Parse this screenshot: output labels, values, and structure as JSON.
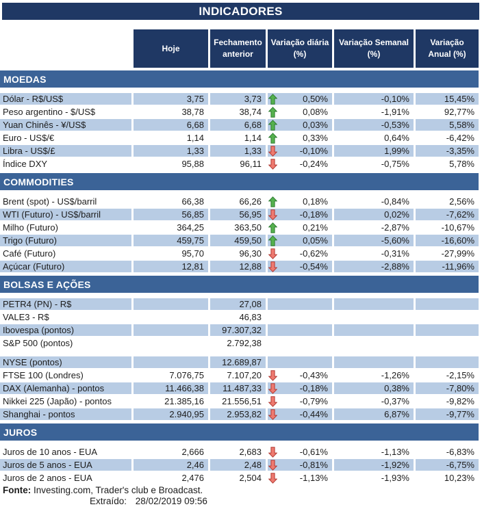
{
  "title": "INDICADORES",
  "columns": [
    "Hoje",
    "Fechamento anterior",
    "Variação diária (%)",
    "Variação Semanal (%)",
    "Variação Anual (%)"
  ],
  "sections": [
    {
      "name": "MOEDAS",
      "rows": [
        {
          "label": "Dólar - R$/US$",
          "hoje": "3,75",
          "prev": "3,73",
          "arrow": "up",
          "daily": "0,50%",
          "weekly": "-0,10%",
          "annual": "15,45%",
          "striped": true,
          "gap_before": false
        },
        {
          "label": "Peso argentino - $/US$",
          "hoje": "38,78",
          "prev": "38,74",
          "arrow": "up",
          "daily": "0,08%",
          "weekly": "-1,91%",
          "annual": "92,77%",
          "striped": false,
          "gap_before": false
        },
        {
          "label": "Yuan Chinês - ¥/US$",
          "hoje": "6,68",
          "prev": "6,68",
          "arrow": "up",
          "daily": "0,03%",
          "weekly": "-0,53%",
          "annual": "5,58%",
          "striped": true,
          "gap_before": false
        },
        {
          "label": "Euro - US$/€",
          "hoje": "1,14",
          "prev": "1,14",
          "arrow": "up",
          "daily": "0,33%",
          "weekly": "0,64%",
          "annual": "-6,42%",
          "striped": false,
          "gap_before": false
        },
        {
          "label": "Libra - US$/£",
          "hoje": "1,33",
          "prev": "1,33",
          "arrow": "down",
          "daily": "-0,10%",
          "weekly": "1,99%",
          "annual": "-3,35%",
          "striped": true,
          "gap_before": false
        },
        {
          "label": "Índice DXY",
          "hoje": "95,88",
          "prev": "96,11",
          "arrow": "down",
          "daily": "-0,24%",
          "weekly": "-0,75%",
          "annual": "5,78%",
          "striped": false,
          "gap_before": false
        }
      ]
    },
    {
      "name": "COMMODITIES",
      "rows": [
        {
          "label": "Brent (spot) - US$/barril",
          "hoje": "66,38",
          "prev": "66,26",
          "arrow": "up",
          "daily": "0,18%",
          "weekly": "-0,84%",
          "annual": "2,56%",
          "striped": false,
          "gap_before": false
        },
        {
          "label": "WTI (Futuro) - US$/barril",
          "hoje": "56,85",
          "prev": "56,95",
          "arrow": "down",
          "daily": "-0,18%",
          "weekly": "0,02%",
          "annual": "-7,62%",
          "striped": true,
          "gap_before": false
        },
        {
          "label": "Milho (Futuro)",
          "hoje": "364,25",
          "prev": "363,50",
          "arrow": "up",
          "daily": "0,21%",
          "weekly": "-2,87%",
          "annual": "-10,67%",
          "striped": false,
          "gap_before": false
        },
        {
          "label": "Trigo (Futuro)",
          "hoje": "459,75",
          "prev": "459,50",
          "arrow": "up",
          "daily": "0,05%",
          "weekly": "-5,60%",
          "annual": "-16,60%",
          "striped": true,
          "gap_before": false
        },
        {
          "label": "Café (Futuro)",
          "hoje": "95,70",
          "prev": "96,30",
          "arrow": "down",
          "daily": "-0,62%",
          "weekly": "-0,31%",
          "annual": "-27,99%",
          "striped": false,
          "gap_before": false
        },
        {
          "label": "Açúcar (Futuro)",
          "hoje": "12,81",
          "prev": "12,88",
          "arrow": "down",
          "daily": "-0,54%",
          "weekly": "-2,88%",
          "annual": "-11,96%",
          "striped": true,
          "gap_before": false
        }
      ]
    },
    {
      "name": "BOLSAS E AÇÕES",
      "rows": [
        {
          "label": "PETR4 (PN) - R$",
          "hoje": "",
          "prev": "27,08",
          "arrow": null,
          "daily": "",
          "weekly": "",
          "annual": "",
          "striped": true,
          "gap_before": false
        },
        {
          "label": "VALE3 - R$",
          "hoje": "",
          "prev": "46,83",
          "arrow": null,
          "daily": "",
          "weekly": "",
          "annual": "",
          "striped": false,
          "gap_before": false
        },
        {
          "label": "Ibovespa (pontos)",
          "hoje": "",
          "prev": "97.307,32",
          "arrow": null,
          "daily": "",
          "weekly": "",
          "annual": "",
          "striped": true,
          "gap_before": false
        },
        {
          "label": "S&P 500 (pontos)",
          "hoje": "",
          "prev": "2.792,38",
          "arrow": null,
          "daily": "",
          "weekly": "",
          "annual": "",
          "striped": false,
          "gap_before": false
        },
        {
          "label": "NYSE (pontos)",
          "hoje": "",
          "prev": "12.689,87",
          "arrow": null,
          "daily": "",
          "weekly": "",
          "annual": "",
          "striped": true,
          "gap_before": true
        },
        {
          "label": "FTSE 100 (Londres)",
          "hoje": "7.076,75",
          "prev": "7.107,20",
          "arrow": "down",
          "daily": "-0,43%",
          "weekly": "-1,26%",
          "annual": "-2,15%",
          "striped": false,
          "gap_before": false
        },
        {
          "label": "DAX (Alemanha) - pontos",
          "hoje": "11.466,38",
          "prev": "11.487,33",
          "arrow": "down",
          "daily": "-0,18%",
          "weekly": "0,38%",
          "annual": "-7,80%",
          "striped": true,
          "gap_before": false
        },
        {
          "label": "Nikkei 225 (Japão) - pontos",
          "hoje": "21.385,16",
          "prev": "21.556,51",
          "arrow": "down",
          "daily": "-0,79%",
          "weekly": "-0,37%",
          "annual": "-9,82%",
          "striped": false,
          "gap_before": false
        },
        {
          "label": "Shanghai - pontos",
          "hoje": "2.940,95",
          "prev": "2.953,82",
          "arrow": "down",
          "daily": "-0,44%",
          "weekly": "6,87%",
          "annual": "-9,77%",
          "striped": true,
          "gap_before": false
        }
      ]
    },
    {
      "name": "JUROS",
      "rows": [
        {
          "label": "Juros de 10 anos - EUA",
          "hoje": "2,666",
          "prev": "2,683",
          "arrow": "down",
          "daily": "-0,61%",
          "weekly": "-1,13%",
          "annual": "-6,83%",
          "striped": false,
          "gap_before": false
        },
        {
          "label": "Juros de 5 anos - EUA",
          "hoje": "2,46",
          "prev": "2,48",
          "arrow": "down",
          "daily": "-0,81%",
          "weekly": "-1,92%",
          "annual": "-6,75%",
          "striped": true,
          "gap_before": false
        },
        {
          "label": "Juros de 2 anos - EUA",
          "hoje": "2,476",
          "prev": "2,504",
          "arrow": "down",
          "daily": "-1,13%",
          "weekly": "-1,93%",
          "annual": "10,23%",
          "striped": false,
          "gap_before": false
        }
      ]
    }
  ],
  "footer": {
    "source_label": "Fonte:",
    "source_text": "Investing.com, Trader's club e Broadcast.",
    "extracted_label": "Extraído:",
    "extracted_value": "28/02/2019 09:56"
  },
  "colors": {
    "navy": "#1F3864",
    "steel": "#3B6397",
    "stripe": "#B8CCE4",
    "arrow_up_fill": "#55B14E",
    "arrow_up_stroke": "#2E7D32",
    "arrow_down_fill": "#EE7A70",
    "arrow_down_stroke": "#B23B34"
  }
}
